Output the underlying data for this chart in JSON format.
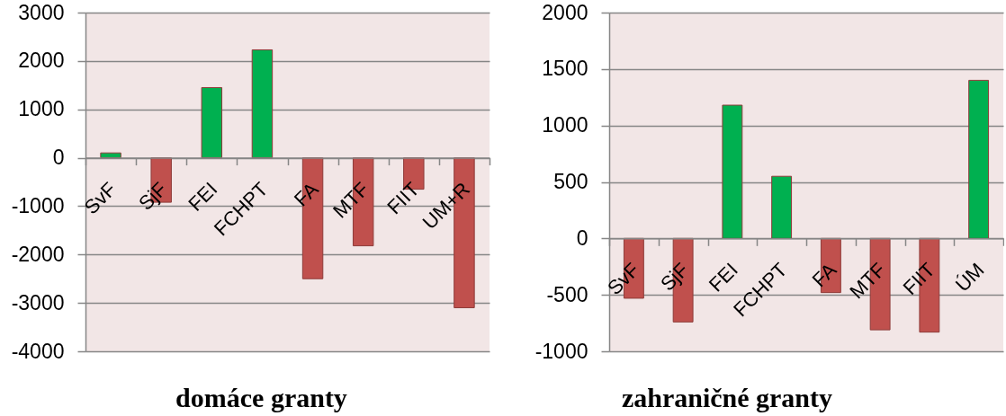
{
  "chart_data": [
    {
      "type": "bar",
      "title": "domáce granty",
      "categories": [
        "SvF",
        "SjF",
        "FEI",
        "FCHPT",
        "FA",
        "MTF",
        "FIIT",
        "UM+R"
      ],
      "values": [
        100,
        -920,
        1450,
        2230,
        -2500,
        -1820,
        -650,
        -3100
      ],
      "colors": [
        "#00b050",
        "#c0504d",
        "#00b050",
        "#00b050",
        "#c0504d",
        "#c0504d",
        "#c0504d",
        "#c0504d"
      ],
      "ylim": [
        -4000,
        3000
      ],
      "yticks": [
        -4000,
        -3000,
        -2000,
        -1000,
        0,
        1000,
        2000,
        3000
      ],
      "grid": "y"
    },
    {
      "type": "bar",
      "title": "zahraničné granty",
      "categories": [
        "SvF",
        "SjF",
        "FEI",
        "FCHPT",
        "FA",
        "MTF",
        "FIIT",
        "ÚM"
      ],
      "values": [
        -530,
        -740,
        1180,
        550,
        -480,
        -810,
        -830,
        1400
      ],
      "colors": [
        "#c0504d",
        "#c0504d",
        "#00b050",
        "#00b050",
        "#c0504d",
        "#c0504d",
        "#c0504d",
        "#00b050"
      ],
      "ylim": [
        -1000,
        2000
      ],
      "yticks": [
        -1000,
        -500,
        0,
        500,
        1000,
        1500,
        2000
      ],
      "grid": "y"
    }
  ]
}
